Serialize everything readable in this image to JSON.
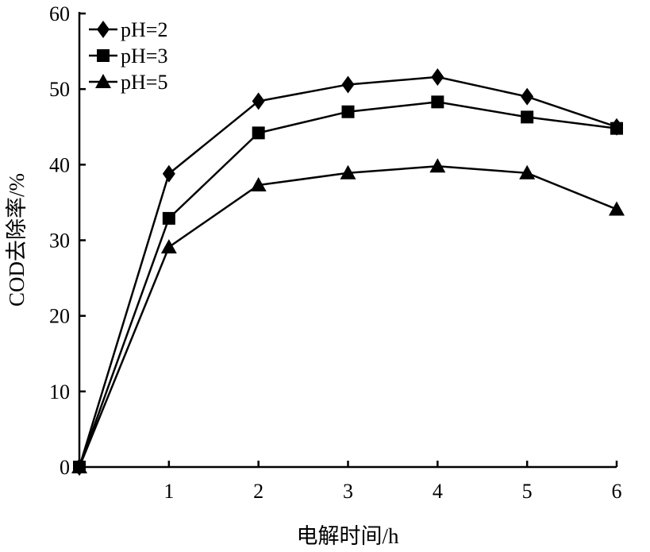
{
  "chart_data": {
    "type": "line",
    "xlabel": "电解时间/h",
    "ylabel": "COD去除率/%",
    "x": [
      0,
      1,
      2,
      3,
      4,
      5,
      6
    ],
    "xlim": [
      0,
      6
    ],
    "ylim": [
      0,
      60
    ],
    "xticks": [
      "1",
      "2",
      "3",
      "4",
      "5",
      "6"
    ],
    "yticks": [
      "0",
      "10",
      "20",
      "30",
      "40",
      "50",
      "60"
    ],
    "grid": false,
    "legend_position": "top-left",
    "series": [
      {
        "name": "pH=2",
        "marker": "diamond",
        "values": [
          0,
          38.8,
          48.4,
          50.6,
          51.6,
          49.0,
          45.0
        ]
      },
      {
        "name": "pH=3",
        "marker": "square",
        "values": [
          0,
          32.9,
          44.2,
          47.0,
          48.3,
          46.3,
          44.8
        ]
      },
      {
        "name": "pH=5",
        "marker": "triangle",
        "values": [
          0,
          29.1,
          37.3,
          38.9,
          39.8,
          38.9,
          34.1
        ]
      }
    ],
    "color": "#000000"
  }
}
